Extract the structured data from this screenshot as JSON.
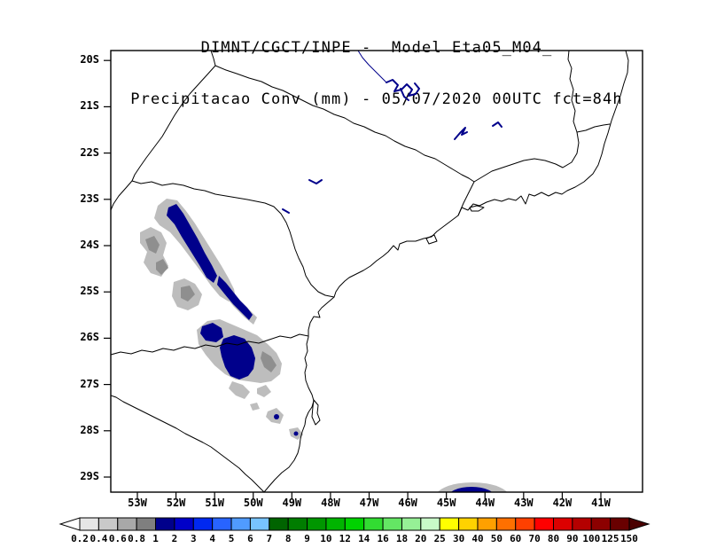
{
  "title": {
    "line1": "DIMNT/CGCT/INPE -  Model Eta05_M04_",
    "line2": "Precipitacao Conv (mm) - 05/07/2020 00UTC fct=84h"
  },
  "axes": {
    "lat_labels": [
      "20S",
      "21S",
      "22S",
      "23S",
      "24S",
      "25S",
      "26S",
      "27S",
      "28S",
      "29S"
    ],
    "lon_labels": [
      "53W",
      "52W",
      "51W",
      "50W",
      "49W",
      "48W",
      "47W",
      "46W",
      "45W",
      "44W",
      "43W",
      "42W",
      "41W"
    ]
  },
  "colorbar": {
    "labels": [
      "0.2",
      "0.4",
      "0.6",
      "0.8",
      "1",
      "2",
      "3",
      "4",
      "5",
      "6",
      "7",
      "8",
      "9",
      "10",
      "12",
      "14",
      "16",
      "18",
      "20",
      "25",
      "30",
      "40",
      "50",
      "60",
      "70",
      "80",
      "90",
      "100",
      "125",
      "150"
    ],
    "colors": [
      "#ffffff",
      "#e6e6e6",
      "#c9c9c9",
      "#a8a8a8",
      "#7f7f7f",
      "#00008b",
      "#0000c8",
      "#0028f0",
      "#2864ff",
      "#509bff",
      "#78c3ff",
      "#006400",
      "#007d00",
      "#009600",
      "#00b400",
      "#00d200",
      "#32dc32",
      "#64e664",
      "#96f096",
      "#c8fac8",
      "#ffff00",
      "#ffd200",
      "#ffa000",
      "#ff7000",
      "#ff4000",
      "#ff0000",
      "#dc0000",
      "#b40000",
      "#8c0000",
      "#690000",
      "#4b0000"
    ]
  },
  "map": {
    "line_color": "#000000",
    "water_feature_color": "#00008b",
    "shade_light_gray": "#bdbdbd",
    "shade_dark_gray": "#8f8f8f",
    "shade_blue": "#00008b"
  },
  "chart_data": {
    "type": "heatmap",
    "institution": "DIMNT/CGCT/INPE",
    "model": "Eta05_M04_",
    "variable": "Precipitacao Conv",
    "units": "mm",
    "init_and_valid": "05/07/2020 00UTC",
    "forecast": "fct=84h",
    "lon_ticks": [
      "53W",
      "52W",
      "51W",
      "50W",
      "49W",
      "48W",
      "47W",
      "46W",
      "45W",
      "44W",
      "43W",
      "42W",
      "41W"
    ],
    "lat_ticks": [
      "20S",
      "21S",
      "22S",
      "23S",
      "24S",
      "25S",
      "26S",
      "27S",
      "28S",
      "29S"
    ],
    "scale_levels_mm": [
      0.2,
      0.4,
      0.6,
      0.8,
      1,
      2,
      3,
      4,
      5,
      6,
      7,
      8,
      9,
      10,
      12,
      14,
      16,
      18,
      20,
      25,
      30,
      40,
      50,
      60,
      70,
      80,
      90,
      100,
      125,
      150
    ],
    "shaded_regions": [
      {
        "location": "elongated band ~52.3W 23.2S to 51.0W 24.7S (western Sao Paulo / northern Parana)",
        "value_mm": "1-3 blue core with 0.2-1 gray fringe"
      },
      {
        "location": "narrow streak ~51.0W 24.8S to 50.0W 25.5S",
        "value_mm": "1-2"
      },
      {
        "location": "cluster ~51.3W 25.8S to 49.9W 26.9S (southern Parana / western Santa Catarina)",
        "value_mm": "1-4 blue core with 0.2-1 gray fringe"
      },
      {
        "location": "small cells near 49.7W 27.2S, 49.5W 27.7S, 48.9W 28.1S",
        "value_mm": "0.2-1"
      },
      {
        "location": "offshore cell ~44.4W 29.3S cut by bottom edge",
        "value_mm": "1-4 blue core with 0.2-1 gray fringe"
      }
    ],
    "legend_position": "bottom"
  }
}
